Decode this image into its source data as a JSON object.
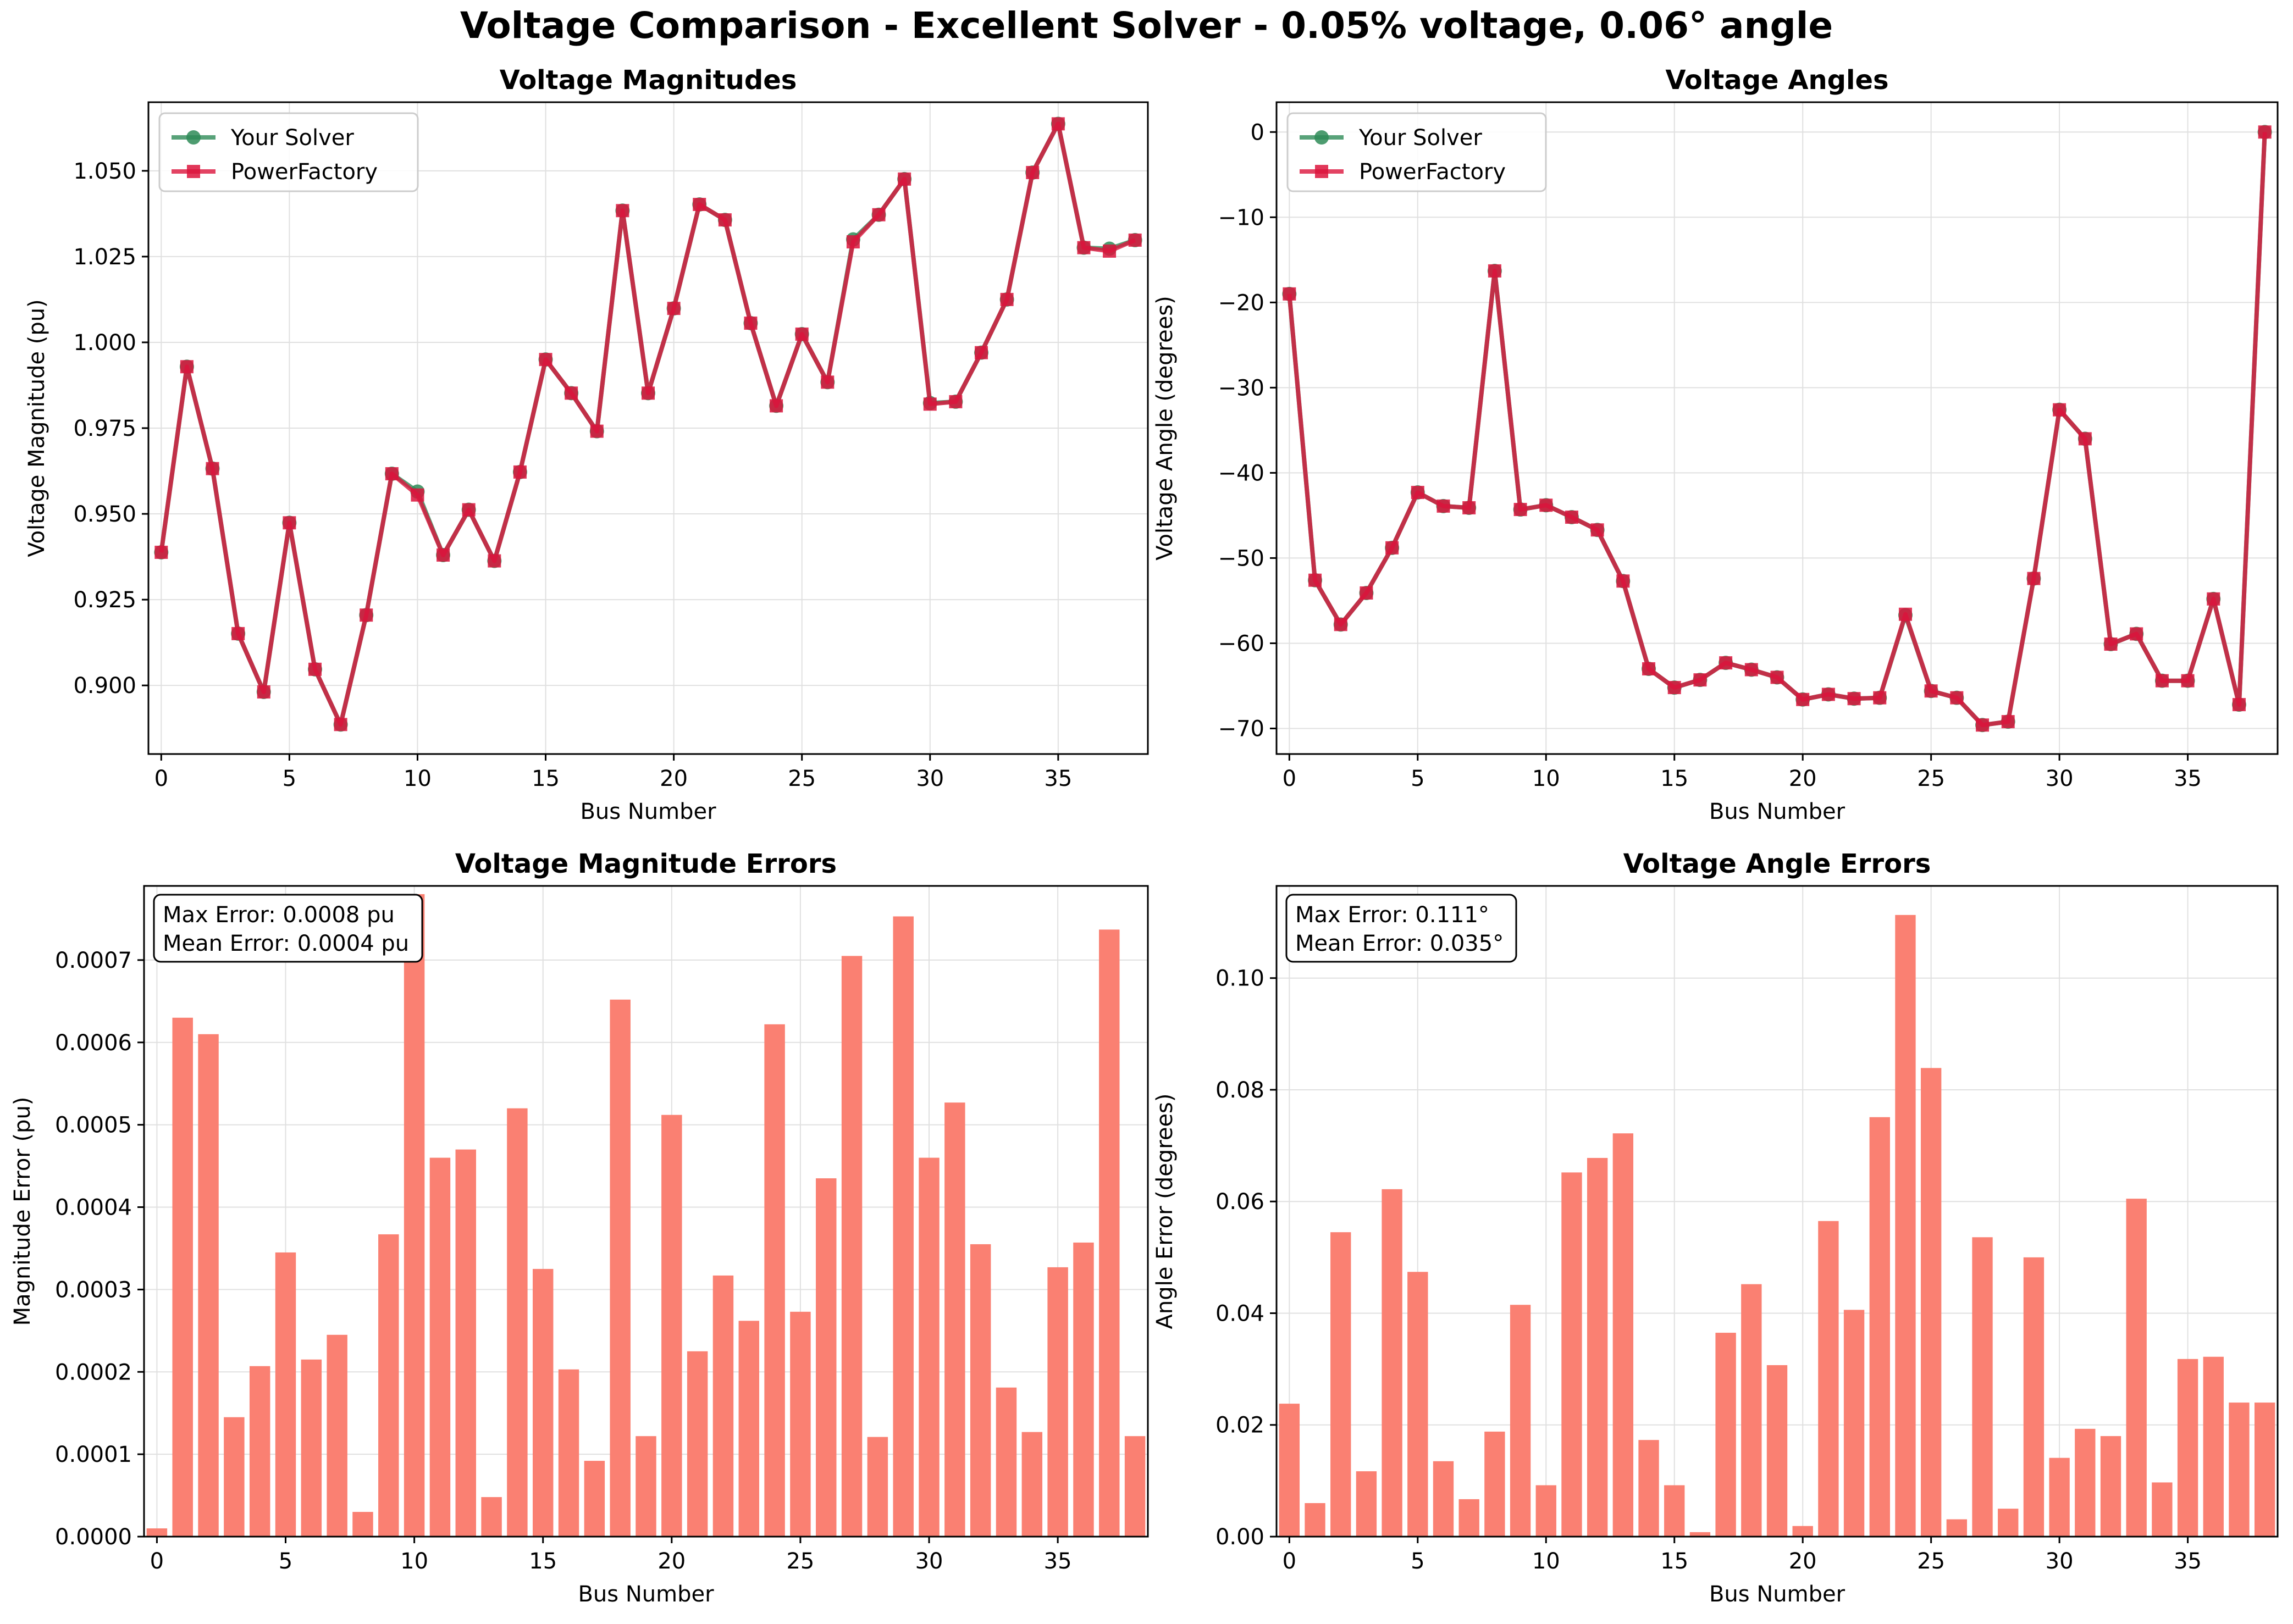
{
  "figure": {
    "suptitle": "Voltage Comparison - Excellent Solver - 0.05% voltage, 0.06° angle",
    "colors": {
      "solver": "#2e8b57",
      "powerfactory": "#dc143c",
      "bars": "#fa8072",
      "grid": "#e0e0e0",
      "axis": "#000000"
    }
  },
  "chart_data": [
    {
      "type": "line",
      "title": "Voltage Magnitudes",
      "xlabel": "Bus Number",
      "ylabel": "Voltage Magnitude (pu)",
      "xlim": [
        -0.5,
        38.5
      ],
      "ylim": [
        0.88,
        1.07
      ],
      "xticks": [
        0,
        5,
        10,
        15,
        20,
        25,
        30,
        35
      ],
      "yticks": [
        0.9,
        0.925,
        0.95,
        0.975,
        1.0,
        1.025,
        1.05
      ],
      "ytick_labels": [
        "0.900",
        "0.925",
        "0.950",
        "0.975",
        "1.000",
        "1.025",
        "1.050"
      ],
      "grid": true,
      "legend": "upper left",
      "series": [
        {
          "name": "Your Solver",
          "marker": "circle",
          "color": "#2e8b57",
          "values": [
            0.9388,
            0.9929,
            0.9632,
            0.9151,
            0.8981,
            0.9474,
            0.9047,
            0.8886,
            0.9205,
            0.9617,
            0.9565,
            0.938,
            0.9512,
            0.9363,
            0.9622,
            0.995,
            0.9852,
            0.9741,
            1.0384,
            0.9852,
            1.0099,
            1.0402,
            1.0357,
            1.0056,
            0.9815,
            1.0024,
            0.9884,
            1.03,
            1.0372,
            1.0476,
            0.9823,
            0.9827,
            0.997,
            1.0125,
            1.0495,
            1.0637,
            1.0276,
            1.0273,
            1.0298
          ]
        },
        {
          "name": "PowerFactory",
          "marker": "square",
          "color": "#dc143c",
          "values": [
            0.9388,
            0.9929,
            0.9632,
            0.9151,
            0.8981,
            0.9474,
            0.9047,
            0.8886,
            0.9205,
            0.9617,
            0.9555,
            0.938,
            0.9512,
            0.9363,
            0.9622,
            0.995,
            0.9852,
            0.9741,
            1.0384,
            0.9852,
            1.0099,
            1.0402,
            1.0357,
            1.0056,
            0.9815,
            1.0024,
            0.9884,
            1.0293,
            1.0372,
            1.0476,
            0.982,
            0.9827,
            0.997,
            1.0125,
            1.0495,
            1.0637,
            1.0276,
            1.0266,
            1.0298
          ]
        }
      ]
    },
    {
      "type": "line",
      "title": "Voltage Angles",
      "xlabel": "Bus Number",
      "ylabel": "Voltage Angle (degrees)",
      "xlim": [
        -0.5,
        38.5
      ],
      "ylim": [
        -73,
        3.5
      ],
      "xticks": [
        0,
        5,
        10,
        15,
        20,
        25,
        30,
        35
      ],
      "yticks": [
        0,
        -10,
        -20,
        -30,
        -40,
        -50,
        -60,
        -70
      ],
      "ytick_labels": [
        "0",
        "−10",
        "−20",
        "−30",
        "−40",
        "−50",
        "−60",
        "−70"
      ],
      "grid": true,
      "legend": "upper left",
      "series": [
        {
          "name": "Your Solver",
          "marker": "circle",
          "color": "#2e8b57",
          "values": [
            -19.0,
            -52.6,
            -57.8,
            -54.1,
            -48.8,
            -42.3,
            -43.9,
            -44.1,
            -16.3,
            -44.3,
            -43.8,
            -45.2,
            -46.7,
            -52.7,
            -63.0,
            -65.2,
            -64.3,
            -62.3,
            -63.1,
            -64.0,
            -66.6,
            -66.0,
            -66.5,
            -66.4,
            -56.7,
            -65.6,
            -66.4,
            -69.6,
            -69.2,
            -52.4,
            -32.6,
            -36.0,
            -60.1,
            -58.9,
            -64.4,
            -64.4,
            -54.8,
            -67.2,
            0.0
          ]
        },
        {
          "name": "PowerFactory",
          "marker": "square",
          "color": "#dc143c",
          "values": [
            -19.0,
            -52.6,
            -57.8,
            -54.1,
            -48.8,
            -42.3,
            -43.9,
            -44.1,
            -16.3,
            -44.3,
            -43.8,
            -45.2,
            -46.7,
            -52.7,
            -63.0,
            -65.2,
            -64.3,
            -62.3,
            -63.1,
            -64.0,
            -66.6,
            -66.0,
            -66.5,
            -66.4,
            -56.6,
            -65.6,
            -66.4,
            -69.6,
            -69.2,
            -52.4,
            -32.6,
            -36.0,
            -60.1,
            -58.9,
            -64.4,
            -64.4,
            -54.8,
            -67.2,
            0.0
          ]
        }
      ]
    },
    {
      "type": "bar",
      "title": "Voltage Magnitude Errors",
      "xlabel": "Bus Number",
      "ylabel": "Magnitude Error (pu)",
      "xlim": [
        -0.5,
        38.5
      ],
      "ylim": [
        0,
        0.00079
      ],
      "xticks": [
        0,
        5,
        10,
        15,
        20,
        25,
        30,
        35
      ],
      "yticks": [
        0,
        0.0001,
        0.0002,
        0.0003,
        0.0004,
        0.0005,
        0.0006,
        0.0007
      ],
      "ytick_labels": [
        "0.0000",
        "0.0001",
        "0.0002",
        "0.0003",
        "0.0004",
        "0.0005",
        "0.0006",
        "0.0007"
      ],
      "grid": true,
      "color": "#fa8072",
      "annotation": [
        "Max Error: 0.0008 pu",
        "Mean Error: 0.0004 pu"
      ],
      "values": [
        1e-05,
        0.00063,
        0.00061,
        0.000145,
        0.000207,
        0.000345,
        0.000215,
        0.000245,
        3e-05,
        0.000367,
        0.00078,
        0.00046,
        0.00047,
        4.8e-05,
        0.00052,
        0.000325,
        0.000203,
        9.2e-05,
        0.000652,
        0.000122,
        0.000512,
        0.000225,
        0.000317,
        0.000262,
        0.000622,
        0.000273,
        0.000435,
        0.000705,
        0.000121,
        0.000753,
        0.00046,
        0.000527,
        0.000355,
        0.000181,
        0.000127,
        0.000327,
        0.000357,
        0.000737,
        0.000122
      ]
    },
    {
      "type": "bar",
      "title": "Voltage Angle Errors",
      "xlabel": "Bus Number",
      "ylabel": "Angle Error (degrees)",
      "xlim": [
        -0.5,
        38.5
      ],
      "ylim": [
        0,
        0.1165
      ],
      "xticks": [
        0,
        5,
        10,
        15,
        20,
        25,
        30,
        35
      ],
      "yticks": [
        0,
        0.02,
        0.04,
        0.06,
        0.08,
        0.1
      ],
      "ytick_labels": [
        "0.00",
        "0.02",
        "0.04",
        "0.06",
        "0.08",
        "0.10"
      ],
      "grid": true,
      "color": "#fa8072",
      "annotation": [
        "Max Error: 0.111°",
        "Mean Error: 0.035°"
      ],
      "values": [
        0.0238,
        0.006,
        0.0545,
        0.0117,
        0.0622,
        0.0474,
        0.0135,
        0.0067,
        0.0188,
        0.0415,
        0.0092,
        0.0652,
        0.0678,
        0.0722,
        0.0173,
        0.0092,
        0.0008,
        0.0365,
        0.0452,
        0.0307,
        0.0019,
        0.0565,
        0.0406,
        0.0751,
        0.1113,
        0.0839,
        0.0031,
        0.0536,
        0.005,
        0.05,
        0.0141,
        0.0193,
        0.018,
        0.0605,
        0.0097,
        0.0318,
        0.0322,
        0.024,
        0.024
      ]
    }
  ]
}
